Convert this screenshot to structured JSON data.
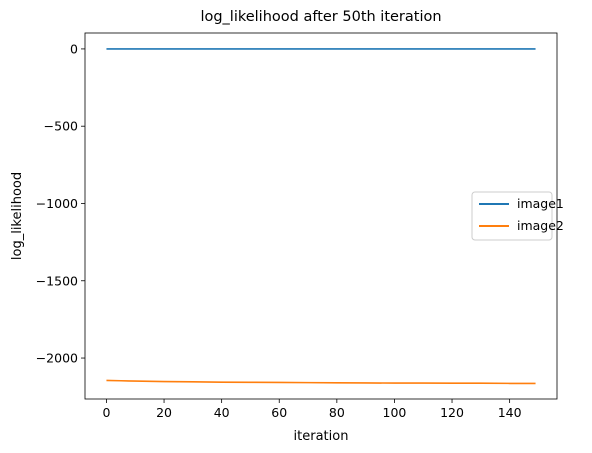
{
  "chart_data": {
    "type": "line",
    "title": "log_likelihood after 50th iteration",
    "xlabel": "iteration",
    "ylabel": "log_likelihood",
    "xlim": [
      -7.45,
      156.45
    ],
    "ylim": [
      -2265,
      103
    ],
    "xticks": [
      0,
      20,
      40,
      60,
      80,
      100,
      120,
      140
    ],
    "yticks": [
      0,
      -500,
      -1000,
      -1500,
      -2000
    ],
    "ytick_labels": [
      "0",
      "−500",
      "−1000",
      "−1500",
      "−2000"
    ],
    "grid": false,
    "legend_position": "center-right",
    "series": [
      {
        "name": "image1",
        "color": "#1f77b4",
        "x": [
          0,
          10,
          20,
          30,
          40,
          50,
          60,
          70,
          80,
          90,
          100,
          110,
          120,
          130,
          140,
          149
        ],
        "y": [
          0,
          0,
          0,
          0,
          0,
          0,
          0,
          0,
          0,
          0,
          0,
          0,
          0,
          0,
          0,
          0
        ]
      },
      {
        "name": "image2",
        "color": "#ff7f0e",
        "x": [
          0,
          5,
          10,
          20,
          30,
          40,
          50,
          60,
          70,
          80,
          90,
          100,
          110,
          120,
          130,
          140,
          149
        ],
        "y": [
          -2145,
          -2147,
          -2149,
          -2152,
          -2154,
          -2156,
          -2157,
          -2158,
          -2159,
          -2160,
          -2161,
          -2162,
          -2162,
          -2163,
          -2163,
          -2164,
          -2164
        ]
      }
    ]
  }
}
